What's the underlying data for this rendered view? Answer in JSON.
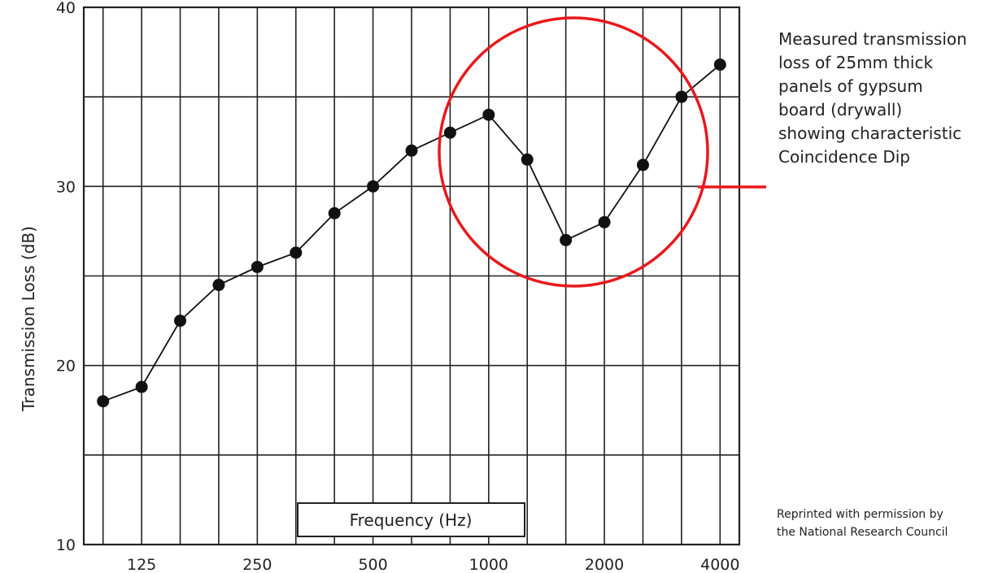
{
  "chart_data": {
    "type": "line",
    "xlabel": "Frequency (Hz)",
    "ylabel": "Transmission Loss (dB)",
    "ylim": [
      10,
      40
    ],
    "y_ticks": [
      "10",
      "20",
      "30",
      "40"
    ],
    "x_ticks": [
      "125",
      "250",
      "500",
      "1000",
      "2000",
      "4000"
    ],
    "x": [
      "100",
      "125",
      "160",
      "200",
      "250",
      "315",
      "400",
      "500",
      "630",
      "800",
      "1000",
      "1250",
      "1600",
      "2000",
      "2500",
      "3150",
      "4000"
    ],
    "values": [
      18,
      18.8,
      22.5,
      24.5,
      25.5,
      26.3,
      28.5,
      30,
      32,
      33,
      34,
      31.5,
      27,
      28,
      31.2,
      35,
      36.8
    ],
    "grid": true,
    "annotation": {
      "lines": [
        "Measured transmission",
        "loss of 25mm thick",
        "panels of gypsum",
        "board (drywall)",
        "showing characteristic"
      ],
      "highlight": "Coincidence Dip"
    },
    "credit": [
      "Reprinted with permission by",
      "the National Research Council"
    ],
    "colors": {
      "line": "#111111",
      "highlight": "#e8191c",
      "grid": "#222222"
    }
  }
}
